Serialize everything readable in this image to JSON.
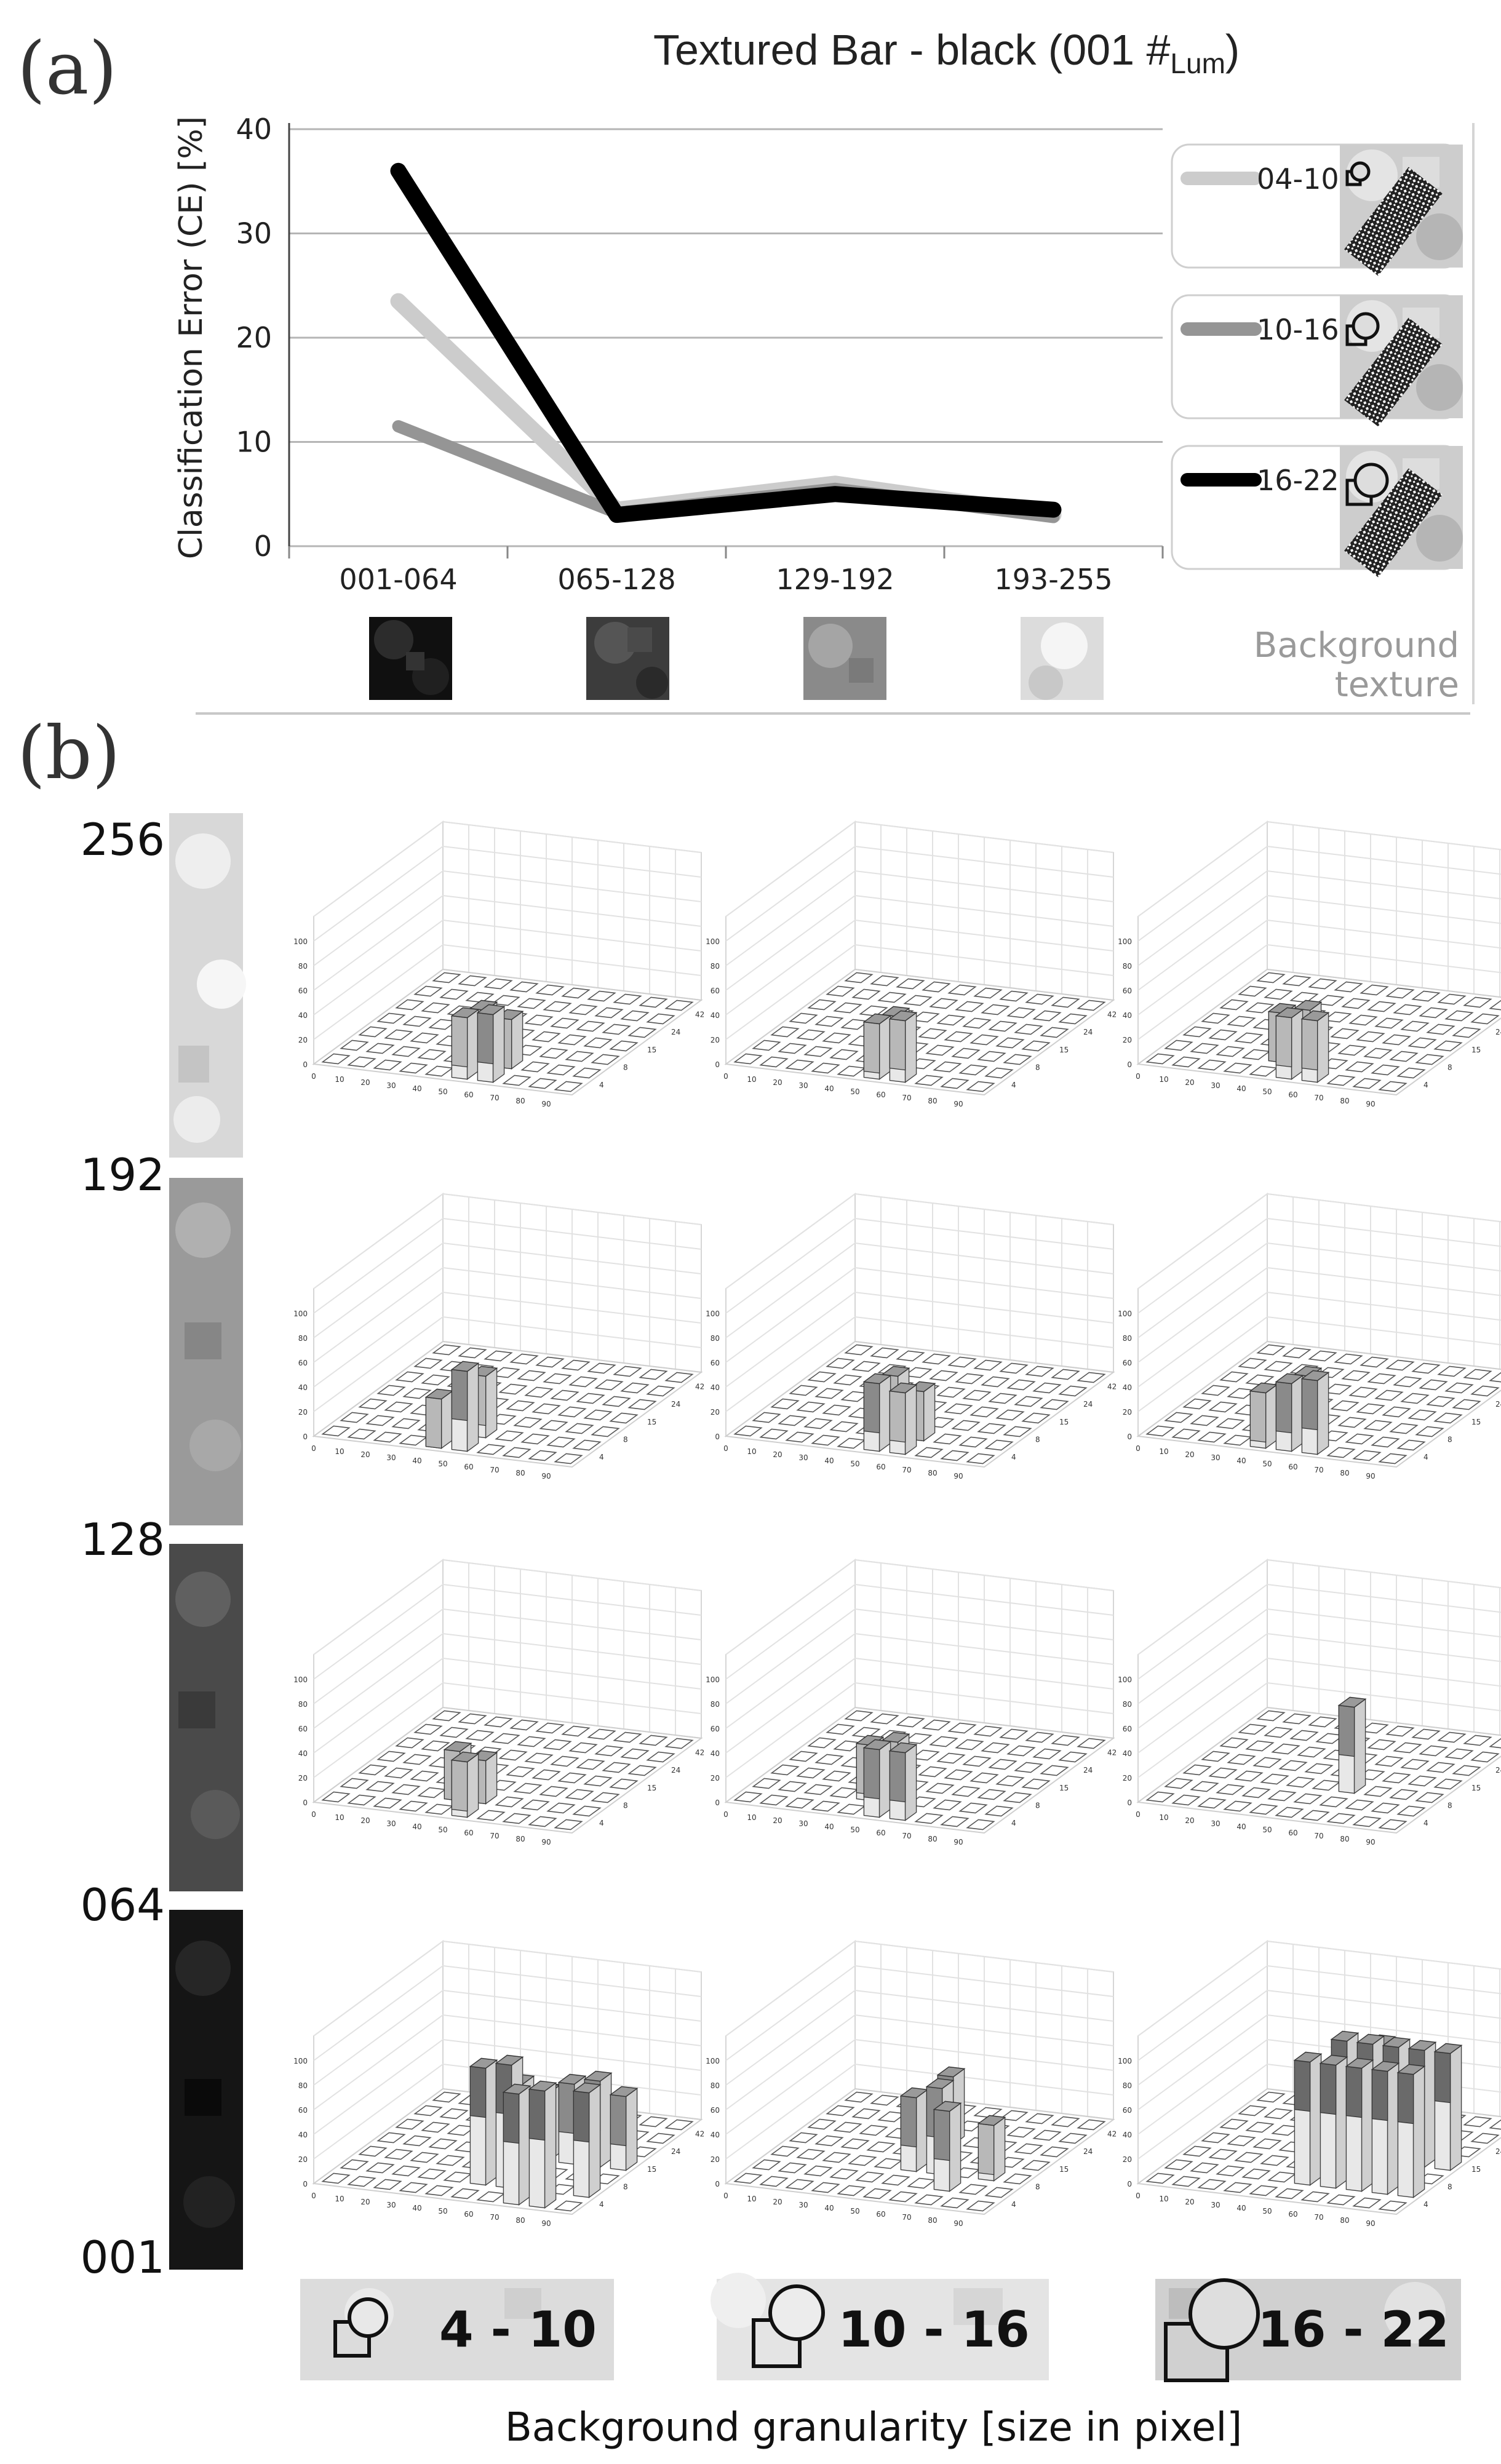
{
  "panel_a": {
    "letter": "(a)",
    "title_main": "Textured Bar  -  black (001 #",
    "title_sub": "Lum",
    "title_end": ")",
    "background_texture_label_1": "Background",
    "background_texture_label_2": "texture"
  },
  "panel_b": {
    "letter": "(b)",
    "row_labels": [
      "256",
      "192",
      "128",
      "064",
      "001"
    ],
    "granularity_labels": [
      "4 - 10",
      "10 - 16",
      "16 - 22"
    ],
    "footer": "Background granularity   [size in pixel]",
    "z_ticks": [
      "0",
      "20",
      "40",
      "60",
      "80",
      "100"
    ],
    "x_ticks": [
      "0",
      "10",
      "20",
      "30",
      "40",
      "50",
      "60",
      "70",
      "80",
      "90"
    ],
    "y_ticks": [
      "4",
      "8",
      "15",
      "24",
      "42"
    ]
  },
  "colors": {
    "light_series": "#cccccc",
    "mid_series": "#959595",
    "dark_series": "#000000",
    "grid": "#b5b5b5"
  },
  "chart_data": [
    {
      "type": "line",
      "title": "Textured Bar  -  black (001 #Lum)",
      "ylabel": "Classification Error  (CE)  [%]",
      "xlabel": "",
      "categories": [
        "001-064",
        "065-128",
        "129-192",
        "193-255"
      ],
      "ylim": [
        0,
        40
      ],
      "yticks": [
        0,
        10,
        20,
        30,
        40
      ],
      "grid": "horizontal",
      "legend_position": "right",
      "series": [
        {
          "name": "04-10",
          "values": [
            23.5,
            3.5,
            6.0,
            3.0
          ],
          "color": "#cccccc"
        },
        {
          "name": "10-16",
          "values": [
            11.5,
            3.2,
            5.5,
            2.8
          ],
          "color": "#959595"
        },
        {
          "name": "16-22",
          "values": [
            36.0,
            3.0,
            5.0,
            3.5
          ],
          "color": "#000000"
        }
      ]
    },
    {
      "type": "bar",
      "title": "",
      "description": "4x3 grid of 3D bar plots: rows are background luminance bands (top to bottom 193-256, 129-192, 065-128, 001-064), columns are background granularity (4-10, 10-16, 16-22). Values are approximate bar heights (0-100) on a 10x7 grid.",
      "grid": [
        [
          {
            "granularity": "4 - 10",
            "band": "192-256",
            "peaks": [
              [
                5,
                0,
                50
              ],
              [
                6,
                0,
                55
              ],
              [
                5,
                1,
                45
              ],
              [
                6,
                1,
                40
              ]
            ]
          },
          {
            "granularity": "10 - 16",
            "band": "192-256",
            "peaks": [
              [
                5,
                0,
                45
              ],
              [
                6,
                0,
                50
              ],
              [
                5,
                1,
                40
              ]
            ]
          },
          {
            "granularity": "16 - 22",
            "band": "192-256",
            "peaks": [
              [
                5,
                0,
                50
              ],
              [
                6,
                0,
                50
              ],
              [
                4,
                1,
                40
              ],
              [
                5,
                1,
                45
              ]
            ]
          }
        ],
        [
          {
            "granularity": "4 - 10",
            "band": "128-192",
            "peaks": [
              [
                5,
                0,
                65
              ],
              [
                4,
                0,
                40
              ],
              [
                5,
                1,
                50
              ]
            ]
          },
          {
            "granularity": "10 - 16",
            "band": "128-192",
            "peaks": [
              [
                5,
                0,
                55
              ],
              [
                6,
                0,
                50
              ],
              [
                5,
                1,
                50
              ],
              [
                6,
                1,
                40
              ]
            ]
          },
          {
            "granularity": "16 - 22",
            "band": "128-192",
            "peaks": [
              [
                5,
                0,
                55
              ],
              [
                6,
                0,
                60
              ],
              [
                4,
                0,
                45
              ],
              [
                5,
                1,
                50
              ]
            ]
          }
        ],
        [
          {
            "granularity": "4 - 10",
            "band": "064-128",
            "peaks": [
              [
                5,
                0,
                45
              ],
              [
                4,
                1,
                40
              ],
              [
                5,
                1,
                35
              ]
            ]
          },
          {
            "granularity": "10 - 16",
            "band": "064-128",
            "peaks": [
              [
                5,
                0,
                55
              ],
              [
                6,
                0,
                55
              ],
              [
                4,
                1,
                45
              ],
              [
                5,
                1,
                50
              ]
            ]
          },
          {
            "granularity": "16 - 22",
            "band": "064-128",
            "peaks": [
              [
                6,
                2,
                70
              ]
            ]
          }
        ],
        [
          {
            "granularity": "4 - 10",
            "band": "001-064",
            "peaks": [
              [
                5,
                1,
                95
              ],
              [
                6,
                1,
                100
              ],
              [
                7,
                0,
                90
              ],
              [
                8,
                0,
                95
              ],
              [
                9,
                1,
                85
              ],
              [
                5,
                3,
                60
              ],
              [
                6,
                3,
                55
              ],
              [
                7,
                3,
                65
              ],
              [
                8,
                3,
                70
              ],
              [
                9,
                3,
                60
              ],
              [
                5,
                5,
                30
              ]
            ]
          },
          {
            "granularity": "10 - 16",
            "band": "001-064",
            "peaks": [
              [
                5,
                2,
                60
              ],
              [
                6,
                2,
                70
              ],
              [
                7,
                1,
                65
              ],
              [
                5,
                4,
                55
              ],
              [
                8,
                2,
                45
              ]
            ]
          },
          {
            "granularity": "16 - 22",
            "band": "001-064",
            "peaks": [
              [
                5,
                1,
                100
              ],
              [
                6,
                1,
                100
              ],
              [
                7,
                1,
                100
              ],
              [
                8,
                1,
                100
              ],
              [
                9,
                1,
                100
              ],
              [
                5,
                3,
                95
              ],
              [
                6,
                3,
                95
              ],
              [
                7,
                3,
                95
              ],
              [
                8,
                3,
                95
              ],
              [
                9,
                3,
                95
              ],
              [
                5,
                5,
                70
              ]
            ]
          }
        ]
      ]
    }
  ]
}
